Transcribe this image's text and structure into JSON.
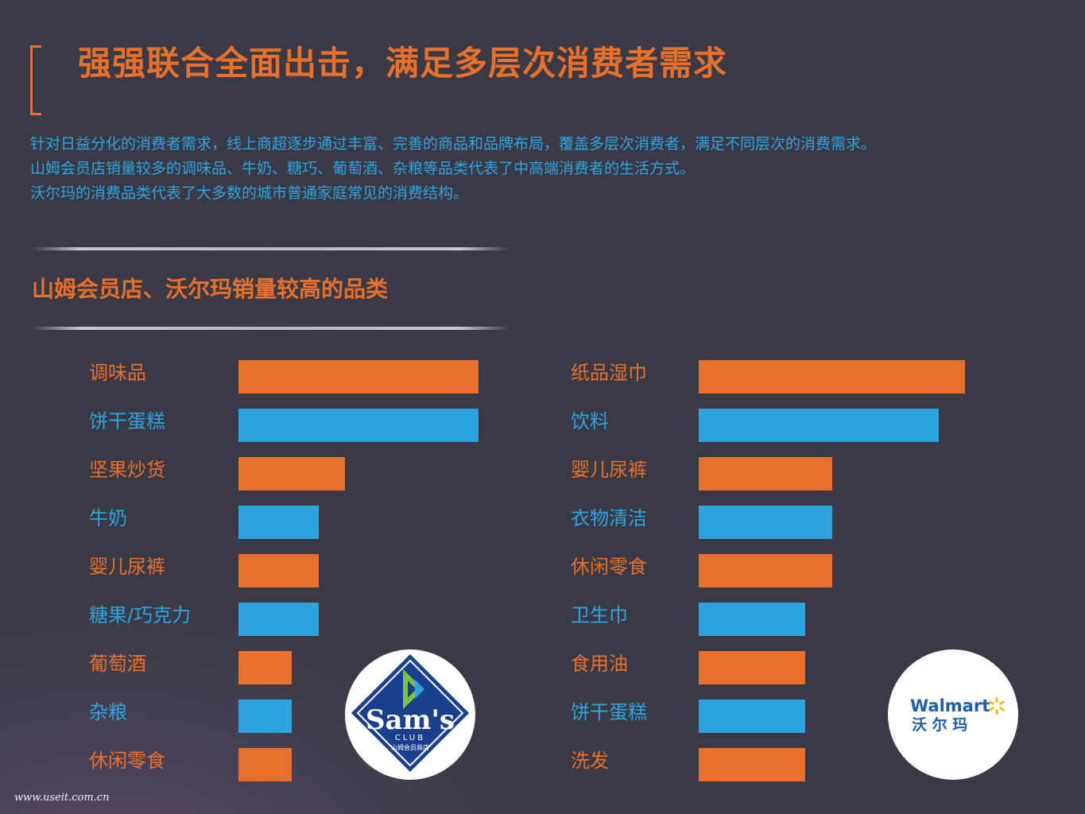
{
  "header": {
    "title": "强强联合全面出击，满足多层次消费者需求",
    "description": [
      "针对日益分化的消费者需求，线上商超逐步通过丰富、完善的商品和品牌布局，覆盖多层次消费者，满足不同层次的消费需求。",
      "山姆会员店销量较多的调味品、牛奶、糖巧、葡萄酒、杂粮等品类代表了中高端消费者的生活方式。",
      "沃尔玛的消费品类代表了大多数的城市普通家庭常见的消费结构。"
    ]
  },
  "section_title": "山姆会员店、沃尔玛销量较高的品类",
  "logos": {
    "sams": {
      "name": "Sam's",
      "sub": "CLUB",
      "cn": "山姆会员商店",
      "icon": "sams-club-logo"
    },
    "walmart": {
      "name": "Walmart",
      "cn": "沃 尔 玛",
      "icon": "walmart-spark-logo"
    }
  },
  "footer": "www.useit.com.cn",
  "colors": {
    "orange": "#e8702a",
    "blue": "#2ea4df",
    "background": "#393a45"
  },
  "chart_data": [
    {
      "type": "bar",
      "orientation": "horizontal",
      "categories": [
        "调味品",
        "饼干蛋糕",
        "坚果炒货",
        "牛奶",
        "婴儿尿裤",
        "糖果/巧克力",
        "葡萄酒",
        "杂粮",
        "休闲零食"
      ],
      "values": [
        9,
        9,
        4,
        3,
        3,
        3,
        2,
        2,
        2
      ],
      "colors": [
        "#e8702a",
        "#2ea4df",
        "#e8702a",
        "#2ea4df",
        "#e8702a",
        "#2ea4df",
        "#e8702a",
        "#2ea4df",
        "#e8702a"
      ],
      "grid": false,
      "legend": "none"
    },
    {
      "type": "bar",
      "orientation": "horizontal",
      "categories": [
        "纸品湿巾",
        "饮料",
        "婴儿尿裤",
        "衣物清洁",
        "休闲零食",
        "卫生巾",
        "食用油",
        "饼干蛋糕",
        "洗发"
      ],
      "values": [
        10,
        9,
        5,
        5,
        5,
        4,
        4,
        4,
        4
      ],
      "colors": [
        "#e8702a",
        "#2ea4df",
        "#e8702a",
        "#2ea4df",
        "#e8702a",
        "#2ea4df",
        "#e8702a",
        "#2ea4df",
        "#e8702a"
      ],
      "grid": false,
      "legend": "none"
    }
  ]
}
